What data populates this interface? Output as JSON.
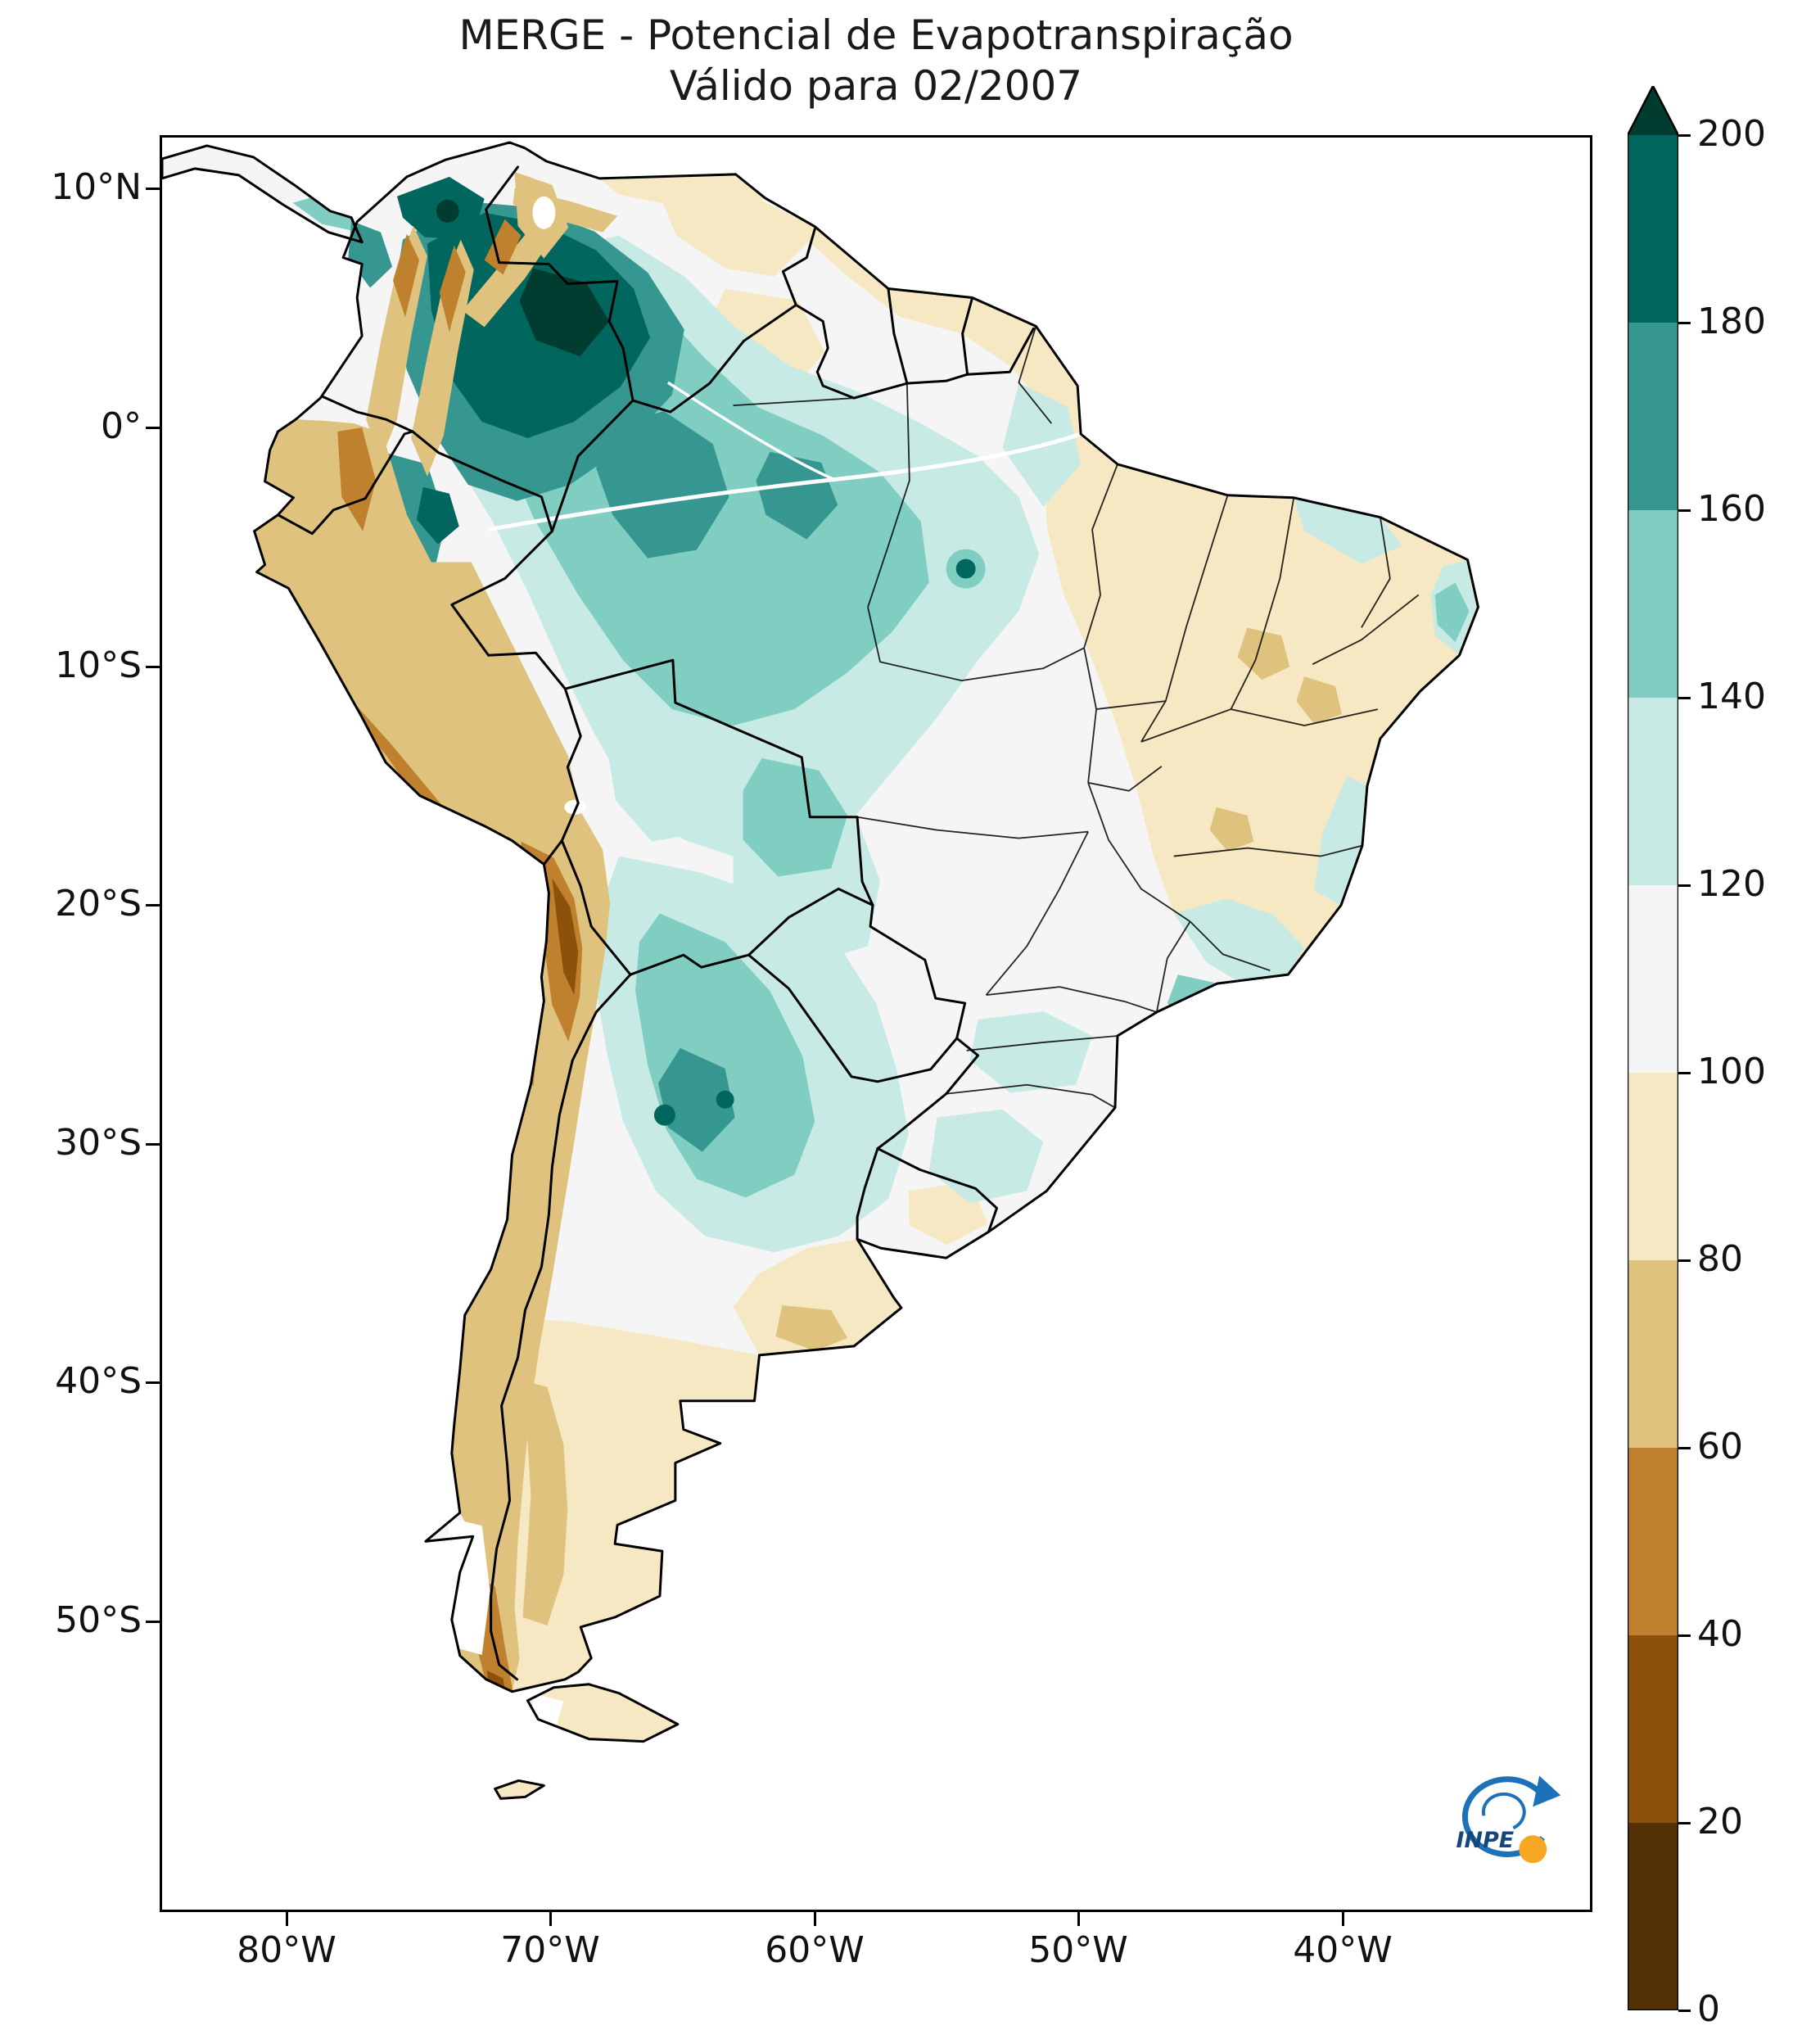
{
  "title": {
    "line1": "MERGE - Potencial de Evapotranspiração",
    "line2": "Válido para 02/2007"
  },
  "axes": {
    "y_ticks": [
      "10°N",
      "0°",
      "10°S",
      "20°S",
      "30°S",
      "40°S",
      "50°S"
    ],
    "x_ticks": [
      "80°W",
      "70°W",
      "60°W",
      "50°W",
      "40°W"
    ]
  },
  "colorbar": {
    "ticks": [
      0,
      20,
      40,
      60,
      80,
      100,
      120,
      140,
      160,
      180,
      200
    ],
    "colors": [
      "#543005",
      "#8c510a",
      "#bf812d",
      "#dfc27d",
      "#f6e8c3",
      "#f5f5f5",
      "#c7eae5",
      "#80cdc1",
      "#35978f",
      "#01665e"
    ],
    "over_color": "#003c30",
    "extend": "max"
  },
  "logo": {
    "text": "INPE",
    "blue": "#1d71b8",
    "orange": "#f7a823",
    "navy": "#16477c"
  },
  "chart_data": {
    "type": "heatmap",
    "title": "MERGE - Potencial de Evapotranspiração",
    "subtitle": "Válido para 02/2007",
    "variable": "Potencial de Evapotranspiração (MERGE)",
    "valid_for": "02/2007",
    "region": "South America",
    "projection": "lat/lon, approx 85°W–32°W and 12°N–57°S",
    "x_axis": {
      "ticks": [
        "80°W",
        "70°W",
        "60°W",
        "50°W",
        "40°W"
      ]
    },
    "y_axis": {
      "ticks": [
        "10°N",
        "0°",
        "10°S",
        "20°S",
        "30°S",
        "40°S",
        "50°S"
      ]
    },
    "colorbar": {
      "min": 0,
      "max": 200,
      "ticks": [
        0,
        20,
        40,
        60,
        80,
        100,
        120,
        140,
        160,
        180,
        200
      ],
      "colormap": "BrBG (brown → beige → white → teal → dark green)",
      "extend": "max"
    },
    "grid": false,
    "legend_position": "right colorbar",
    "features": [
      {
        "region": "Northern Colombia / western Venezuela / NW Amazon",
        "value_range": "160 to >200 (darkest teal cores)"
      },
      {
        "region": "Central Amazon basin (NW Brazil, E Peru)",
        "value_range": "120-180"
      },
      {
        "region": "Paraguay / Gran Chaco / N Argentina",
        "value_range": "120-180 with small >180 spots"
      },
      {
        "region": "Central Mato Grosso tongue",
        "value_range": "140-160"
      },
      {
        "region": "NE Brazilian coast near Recife",
        "value_range": "120-160"
      },
      {
        "region": "Eastern and NE interior Brazil",
        "value_range": "80-120 (pale beige/white)"
      },
      {
        "region": "Guianas coast and Orinoco llanos",
        "value_range": "80-100"
      },
      {
        "region": "Andes cordillera (Colombia to N Chile, Altiplano)",
        "value_range": "20-80 (browns)"
      },
      {
        "region": "Peru/Chile coastal desert",
        "value_range": "60-80"
      },
      {
        "region": "Patagonia and Pampas (S Argentina)",
        "value_range": "60-100, far south 20-60"
      }
    ]
  }
}
